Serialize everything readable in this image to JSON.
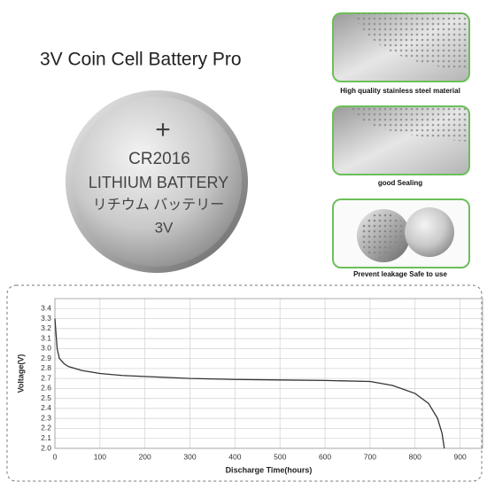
{
  "title": "3V Coin Cell Battery Pro",
  "coin": {
    "symbol": "+",
    "model": "CR2016",
    "brand": "LITHIUM BATTERY",
    "brand_jp": "リチウム バッテリー",
    "voltage": "3V"
  },
  "features": [
    {
      "caption": "High quality stainless steel material"
    },
    {
      "caption": "good Sealing"
    },
    {
      "caption": "Prevent leakage Safe to use"
    }
  ],
  "chart_data": {
    "type": "line",
    "x_label": "Discharge Time(hours)",
    "y_label": "Voltage(V)",
    "x": [
      0,
      5,
      10,
      20,
      30,
      60,
      100,
      150,
      200,
      300,
      400,
      500,
      600,
      700,
      750,
      800,
      830,
      850,
      860,
      865
    ],
    "values": [
      3.3,
      3.0,
      2.9,
      2.85,
      2.82,
      2.78,
      2.75,
      2.73,
      2.72,
      2.7,
      2.69,
      2.685,
      2.68,
      2.67,
      2.63,
      2.55,
      2.45,
      2.3,
      2.15,
      2.0
    ],
    "color": "#333333",
    "xlim": [
      0,
      950
    ],
    "ylim": [
      2.0,
      3.5
    ],
    "xticks": [
      0,
      100,
      200,
      300,
      400,
      500,
      600,
      700,
      800,
      900
    ],
    "yticks": [
      {
        "value": 2,
        "label": "2.0"
      },
      2.1,
      2.2,
      2.3,
      2.4,
      2.5,
      2.6,
      2.7,
      2.8,
      2.9,
      {
        "value": 3,
        "label": "3.0"
      },
      3.1,
      3.2,
      3.3,
      3.4
    ],
    "grid": true
  }
}
